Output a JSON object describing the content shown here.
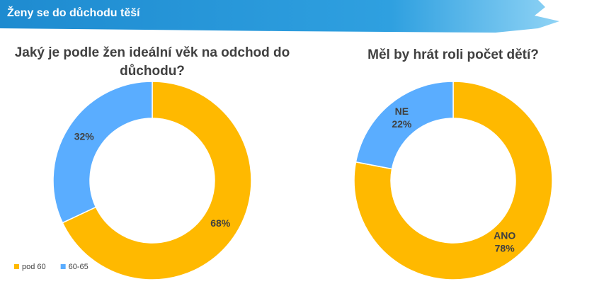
{
  "slide_title": "Ženy se do důchodu těší",
  "chart_data": [
    {
      "type": "donut",
      "title": "Jaký je podle žen ideální věk na odchod do důchodu?",
      "categories": [
        "pod 60",
        "60-65"
      ],
      "values": [
        68,
        32
      ],
      "value_labels": [
        "68%",
        "32%"
      ],
      "colors": [
        "#FFB900",
        "#5AADFF"
      ],
      "legend": "bottom-left"
    },
    {
      "type": "donut",
      "title": "Měl by hrát roli počet dětí?",
      "categories": [
        "ANO",
        "NE"
      ],
      "values": [
        78,
        22
      ],
      "value_labels": [
        "78%",
        "22%"
      ],
      "colors": [
        "#FFB900",
        "#5AADFF"
      ]
    }
  ]
}
